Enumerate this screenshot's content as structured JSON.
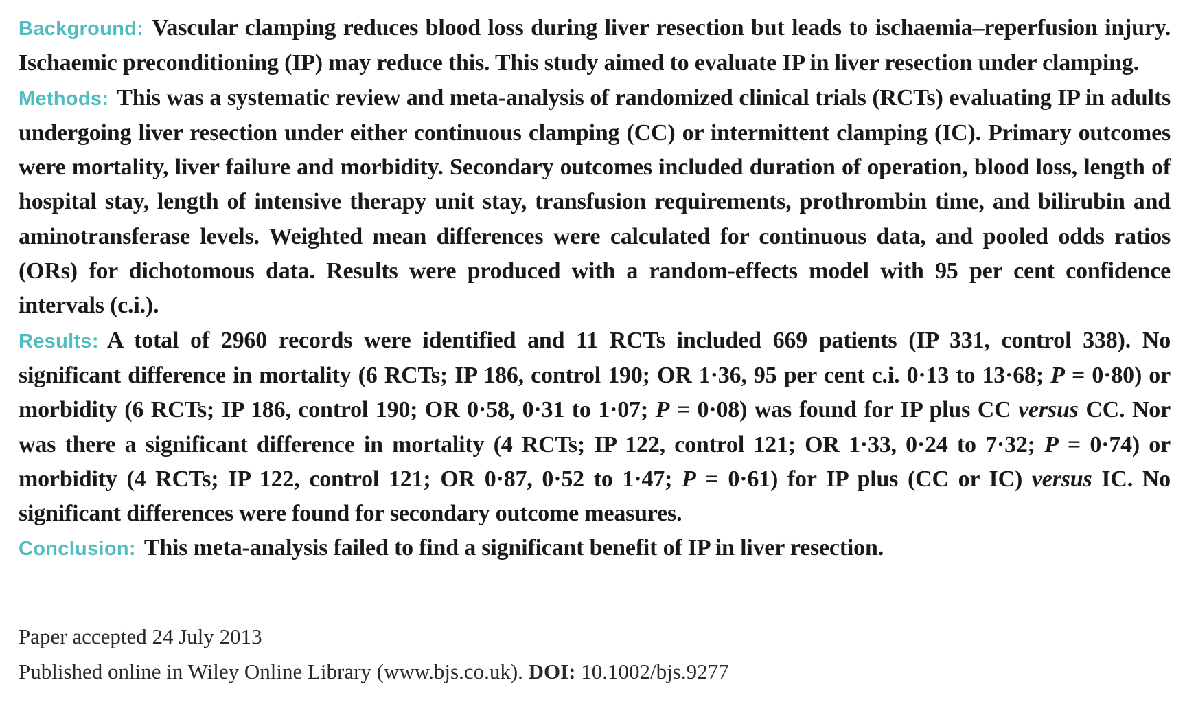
{
  "abstract": {
    "background": {
      "label": "Background:",
      "text": "Vascular clamping reduces blood loss during liver resection but leads to ischaemia–reperfusion injury. Ischaemic preconditioning (IP) may reduce this. This study aimed to evaluate IP in liver resection under clamping."
    },
    "methods": {
      "label": "Methods:",
      "text": "This was a systematic review and meta-analysis of randomized clinical trials (RCTs) evaluating IP in adults undergoing liver resection under either continuous clamping (CC) or intermittent clamping (IC). Primary outcomes were mortality, liver failure and morbidity. Secondary outcomes included duration of operation, blood loss, length of hospital stay, length of intensive therapy unit stay, transfusion requirements, prothrombin time, and bilirubin and aminotransferase levels. Weighted mean differences were calculated for continuous data, and pooled odds ratios (ORs) for dichotomous data. Results were produced with a random-effects model with 95 per cent confidence intervals (c.i.)."
    },
    "results": {
      "label": "Results:",
      "t1": "A total of 2960 records were identified and 11 RCTs included 669 patients (IP 331, control 338). No significant difference in mortality (6 RCTs; IP 186, control 190; OR 1·36, 95 per cent c.i. 0·13 to 13·68; ",
      "p1": "P",
      "t2": " = 0·80) or morbidity (6 RCTs; IP 186, control 190; OR 0·58, 0·31 to 1·07; ",
      "p2": "P",
      "t3": " = 0·08) was found for IP plus CC ",
      "versus1": "versus",
      "t4": " CC. Nor was there a significant difference in mortality (4 RCTs; IP 122, control 121; OR 1·33, 0·24 to 7·32; ",
      "p3": "P",
      "t5": " = 0·74) or morbidity (4 RCTs; IP 122, control 121; OR 0·87, 0·52 to 1·47; ",
      "p4": "P",
      "t6": " = 0·61) for IP plus (CC or IC) ",
      "versus2": "versus",
      "t7": " IC. No significant differences were found for secondary outcome measures."
    },
    "conclusion": {
      "label": "Conclusion:",
      "text": "This meta-analysis failed to find a significant benefit of IP in liver resection."
    }
  },
  "footer": {
    "accepted": "Paper accepted 24 July 2013",
    "published": "Published online in Wiley Online Library (www.bjs.co.uk). ",
    "doi_label": "DOI:",
    "doi_value": " 10.1002/bjs.9277"
  }
}
